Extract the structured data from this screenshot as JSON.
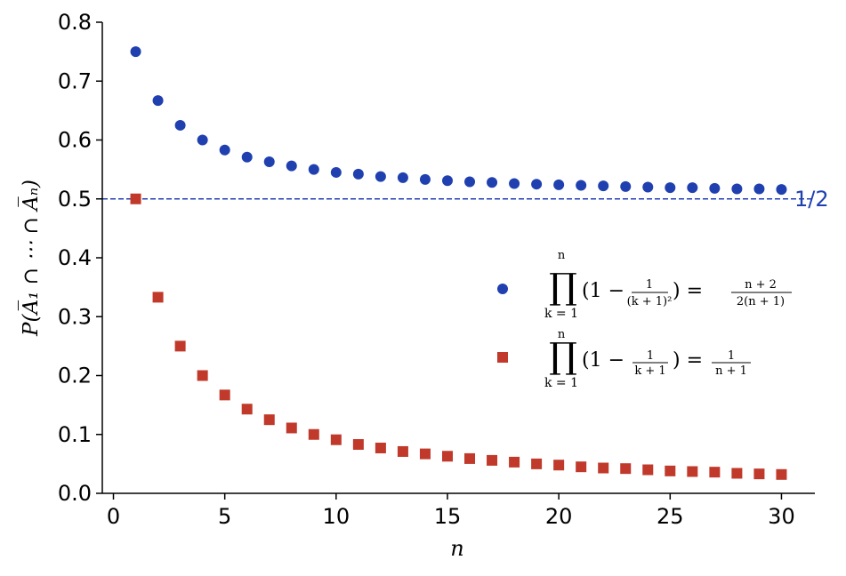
{
  "chart_data": {
    "type": "scatter",
    "xlabel": "n",
    "ylabel": "P(A̅₁ ∩ ⋯ ∩ A̅ₙ)",
    "xlim": [
      -0.5,
      31.5
    ],
    "ylim": [
      0,
      0.8
    ],
    "xticks": [
      "0",
      "5",
      "10",
      "15",
      "20",
      "25",
      "30"
    ],
    "yticks": [
      "0.0",
      "0.1",
      "0.2",
      "0.3",
      "0.4",
      "0.5",
      "0.6",
      "0.7",
      "0.8"
    ],
    "grid": false,
    "legend_position": "center-right",
    "reference_line": {
      "y": 0.5,
      "label": "1/2",
      "color": "#2040b0",
      "style": "dashed"
    },
    "series": [
      {
        "name": "∏ₖ₌₁ⁿ (1 − 1/(k+1)²) = (n+2)/(2(n+1))",
        "marker": "circle",
        "color": "#2040b0",
        "x": [
          1,
          2,
          3,
          4,
          5,
          6,
          7,
          8,
          9,
          10,
          11,
          12,
          13,
          14,
          15,
          16,
          17,
          18,
          19,
          20,
          21,
          22,
          23,
          24,
          25,
          26,
          27,
          28,
          29,
          30
        ],
        "y": [
          0.75,
          0.667,
          0.625,
          0.6,
          0.583,
          0.571,
          0.563,
          0.556,
          0.55,
          0.545,
          0.542,
          0.538,
          0.536,
          0.533,
          0.531,
          0.529,
          0.528,
          0.526,
          0.525,
          0.524,
          0.523,
          0.522,
          0.521,
          0.52,
          0.519,
          0.519,
          0.518,
          0.517,
          0.517,
          0.516
        ]
      },
      {
        "name": "∏ₖ₌₁ⁿ (1 − 1/(k+1)) = 1/(n+1)",
        "marker": "square",
        "color": "#c0392b",
        "x": [
          1,
          2,
          3,
          4,
          5,
          6,
          7,
          8,
          9,
          10,
          11,
          12,
          13,
          14,
          15,
          16,
          17,
          18,
          19,
          20,
          21,
          22,
          23,
          24,
          25,
          26,
          27,
          28,
          29,
          30
        ],
        "y": [
          0.5,
          0.333,
          0.25,
          0.2,
          0.167,
          0.143,
          0.125,
          0.111,
          0.1,
          0.091,
          0.083,
          0.077,
          0.071,
          0.067,
          0.063,
          0.059,
          0.056,
          0.053,
          0.05,
          0.048,
          0.045,
          0.043,
          0.042,
          0.04,
          0.038,
          0.037,
          0.036,
          0.034,
          0.033,
          0.032
        ]
      }
    ]
  }
}
